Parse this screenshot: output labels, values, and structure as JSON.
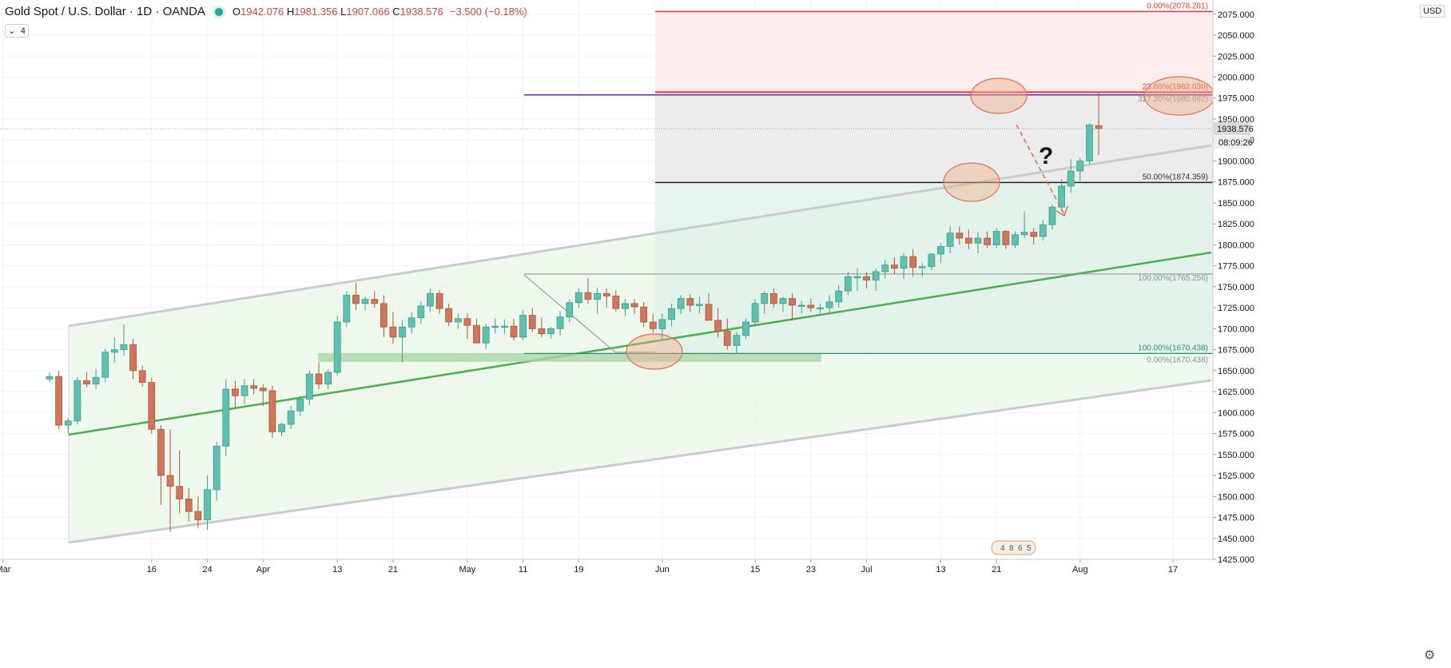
{
  "header": {
    "symbol": "Gold Spot / U.S. Dollar · 1D · OANDA",
    "o_label": "O",
    "o": "1942.076",
    "h_label": "H",
    "h": "1981.356",
    "l_label": "L",
    "l": "1907.066",
    "c_label": "C",
    "c": "1938.576",
    "change": "−3.500 (−0.18%)"
  },
  "collapse_badge": "4",
  "currency": "USD",
  "settings_icon": "gear-icon",
  "colors": {
    "up": "#5fc0b0",
    "down": "#d0765a",
    "channel": "#c8cccf",
    "midline": "#4caf50",
    "fib_top": "#e53935",
    "fib_mid": "#000000",
    "fib_purple": "#6a2aa8",
    "ellipse": "#f0b08a"
  },
  "chart_data": {
    "type": "candlestick",
    "ylim": [
      1425,
      2085
    ],
    "y_ticks": [
      "2075.000",
      "2050.000",
      "2025.000",
      "2000.000",
      "1975.000",
      "1950.000",
      "1925.000",
      "1900.000",
      "1875.000",
      "1850.000",
      "1825.000",
      "1800.000",
      "1775.000",
      "1750.000",
      "1725.000",
      "1700.000",
      "1675.000",
      "1650.000",
      "1625.000",
      "1600.000",
      "1575.000",
      "1550.000",
      "1525.000",
      "1500.000",
      "1475.000",
      "1450.000",
      "1425.000"
    ],
    "x_ticks": [
      {
        "label": "Mar",
        "i": -5
      },
      {
        "label": "16",
        "i": 11
      },
      {
        "label": "24",
        "i": 17
      },
      {
        "label": "Apr",
        "i": 23
      },
      {
        "label": "13",
        "i": 31
      },
      {
        "label": "21",
        "i": 37
      },
      {
        "label": "May",
        "i": 45
      },
      {
        "label": "11",
        "i": 51
      },
      {
        "label": "19",
        "i": 57
      },
      {
        "label": "Jun",
        "i": 66
      },
      {
        "label": "15",
        "i": 76
      },
      {
        "label": "23",
        "i": 82
      },
      {
        "label": "Jul",
        "i": 88
      },
      {
        "label": "13",
        "i": 96
      },
      {
        "label": "21",
        "i": 102
      },
      {
        "label": "Aug",
        "i": 111
      },
      {
        "label": "17",
        "i": 121
      }
    ],
    "ohlc": [
      [
        1640,
        1648,
        1636,
        1643
      ],
      [
        1643,
        1650,
        1580,
        1585
      ],
      [
        1585,
        1593,
        1575,
        1590
      ],
      [
        1590,
        1642,
        1586,
        1638
      ],
      [
        1638,
        1648,
        1630,
        1634
      ],
      [
        1634,
        1652,
        1628,
        1642
      ],
      [
        1642,
        1676,
        1636,
        1672
      ],
      [
        1672,
        1690,
        1660,
        1675
      ],
      [
        1675,
        1705,
        1668,
        1681
      ],
      [
        1681,
        1688,
        1640,
        1650
      ],
      [
        1650,
        1656,
        1631,
        1636
      ],
      [
        1636,
        1642,
        1575,
        1580
      ],
      [
        1580,
        1585,
        1490,
        1525
      ],
      [
        1525,
        1580,
        1458,
        1512
      ],
      [
        1512,
        1555,
        1480,
        1497
      ],
      [
        1497,
        1510,
        1470,
        1482
      ],
      [
        1482,
        1500,
        1462,
        1472
      ],
      [
        1472,
        1525,
        1460,
        1508
      ],
      [
        1508,
        1565,
        1495,
        1560
      ],
      [
        1560,
        1640,
        1548,
        1628
      ],
      [
        1628,
        1638,
        1606,
        1620
      ],
      [
        1620,
        1640,
        1610,
        1632
      ],
      [
        1632,
        1640,
        1622,
        1629
      ],
      [
        1629,
        1634,
        1608,
        1626
      ],
      [
        1626,
        1632,
        1570,
        1577
      ],
      [
        1577,
        1588,
        1572,
        1586
      ],
      [
        1586,
        1608,
        1580,
        1602
      ],
      [
        1602,
        1620,
        1596,
        1616
      ],
      [
        1616,
        1650,
        1609,
        1646
      ],
      [
        1646,
        1660,
        1628,
        1634
      ],
      [
        1634,
        1652,
        1628,
        1648
      ],
      [
        1648,
        1715,
        1644,
        1708
      ],
      [
        1708,
        1745,
        1702,
        1740
      ],
      [
        1740,
        1755,
        1722,
        1730
      ],
      [
        1730,
        1738,
        1722,
        1735
      ],
      [
        1735,
        1745,
        1725,
        1730
      ],
      [
        1730,
        1740,
        1690,
        1702
      ],
      [
        1702,
        1720,
        1682,
        1690
      ],
      [
        1690,
        1710,
        1660,
        1702
      ],
      [
        1702,
        1720,
        1694,
        1713
      ],
      [
        1713,
        1732,
        1706,
        1727
      ],
      [
        1727,
        1748,
        1720,
        1742
      ],
      [
        1742,
        1746,
        1718,
        1724
      ],
      [
        1724,
        1730,
        1703,
        1708
      ],
      [
        1708,
        1718,
        1700,
        1712
      ],
      [
        1712,
        1718,
        1688,
        1704
      ],
      [
        1704,
        1712,
        1683,
        1683
      ],
      [
        1683,
        1706,
        1676,
        1702
      ],
      [
        1702,
        1712,
        1694,
        1703
      ],
      [
        1703,
        1711,
        1694,
        1703
      ],
      [
        1703,
        1712,
        1686,
        1690
      ],
      [
        1690,
        1722,
        1686,
        1716
      ],
      [
        1716,
        1725,
        1696,
        1700
      ],
      [
        1700,
        1713,
        1690,
        1694
      ],
      [
        1694,
        1702,
        1688,
        1700
      ],
      [
        1700,
        1721,
        1692,
        1714
      ],
      [
        1714,
        1735,
        1708,
        1731
      ],
      [
        1731,
        1748,
        1725,
        1743
      ],
      [
        1743,
        1760,
        1730,
        1735
      ],
      [
        1735,
        1749,
        1718,
        1742
      ],
      [
        1742,
        1748,
        1725,
        1739
      ],
      [
        1739,
        1746,
        1720,
        1724
      ],
      [
        1724,
        1736,
        1715,
        1730
      ],
      [
        1730,
        1735,
        1718,
        1726
      ],
      [
        1726,
        1732,
        1702,
        1708
      ],
      [
        1708,
        1718,
        1695,
        1700
      ],
      [
        1700,
        1718,
        1688,
        1711
      ],
      [
        1711,
        1730,
        1703,
        1724
      ],
      [
        1724,
        1740,
        1718,
        1736
      ],
      [
        1736,
        1741,
        1720,
        1728
      ],
      [
        1728,
        1738,
        1718,
        1729
      ],
      [
        1729,
        1742,
        1712,
        1710
      ],
      [
        1710,
        1725,
        1690,
        1697
      ],
      [
        1697,
        1712,
        1675,
        1680
      ],
      [
        1680,
        1696,
        1670,
        1692
      ],
      [
        1692,
        1712,
        1688,
        1708
      ],
      [
        1708,
        1735,
        1705,
        1730
      ],
      [
        1730,
        1745,
        1718,
        1742
      ],
      [
        1742,
        1748,
        1725,
        1730
      ],
      [
        1730,
        1738,
        1720,
        1736
      ],
      [
        1736,
        1742,
        1710,
        1728
      ],
      [
        1728,
        1733,
        1718,
        1728
      ],
      [
        1728,
        1736,
        1720,
        1725
      ],
      [
        1725,
        1730,
        1715,
        1725
      ],
      [
        1725,
        1740,
        1718,
        1732
      ],
      [
        1732,
        1752,
        1725,
        1745
      ],
      [
        1745,
        1768,
        1740,
        1762
      ],
      [
        1762,
        1772,
        1745,
        1762
      ],
      [
        1762,
        1768,
        1748,
        1758
      ],
      [
        1758,
        1772,
        1745,
        1768
      ],
      [
        1768,
        1782,
        1760,
        1776
      ],
      [
        1776,
        1785,
        1765,
        1772
      ],
      [
        1772,
        1790,
        1760,
        1786
      ],
      [
        1786,
        1795,
        1762,
        1773
      ],
      [
        1773,
        1778,
        1762,
        1774
      ],
      [
        1774,
        1790,
        1770,
        1789
      ],
      [
        1789,
        1802,
        1778,
        1798
      ],
      [
        1798,
        1822,
        1790,
        1814
      ],
      [
        1814,
        1822,
        1800,
        1808
      ],
      [
        1808,
        1818,
        1795,
        1802
      ],
      [
        1802,
        1815,
        1790,
        1808
      ],
      [
        1808,
        1816,
        1796,
        1800
      ],
      [
        1800,
        1820,
        1796,
        1816
      ],
      [
        1816,
        1818,
        1795,
        1800
      ],
      [
        1800,
        1816,
        1796,
        1812
      ],
      [
        1812,
        1840,
        1808,
        1815
      ],
      [
        1815,
        1820,
        1800,
        1810
      ],
      [
        1810,
        1830,
        1805,
        1824
      ],
      [
        1824,
        1848,
        1818,
        1845
      ],
      [
        1845,
        1878,
        1840,
        1870
      ],
      [
        1870,
        1902,
        1862,
        1888
      ],
      [
        1888,
        1904,
        1876,
        1900
      ],
      [
        1900,
        1945,
        1896,
        1943
      ],
      [
        1942.076,
        1981.356,
        1907.066,
        1938.576
      ]
    ],
    "start_date_label": "Mar",
    "fib_upper": [
      {
        "label": "0.00%(2078.281)",
        "value": 2078.281
      },
      {
        "label": "23.60%(1982.030)",
        "value": 1982.03
      },
      {
        "label": "50.00%(1874.359)",
        "value": 1874.359
      },
      {
        "label": "100.00%(1670.438)",
        "value": 1670.438
      }
    ],
    "fib_lower": [
      {
        "label": "327.20%(1980.682)",
        "value": 1980.682
      },
      {
        "label": "100.00%(1765.256)",
        "value": 1765.256
      },
      {
        "label": "0.00%(1670.438)",
        "value": 1670.438
      }
    ],
    "price_tags": {
      "last": "1938.576",
      "countdown": "08:09:26"
    },
    "annotation_question": "?",
    "events_badge": [
      "4",
      "8",
      "6",
      "5"
    ]
  }
}
